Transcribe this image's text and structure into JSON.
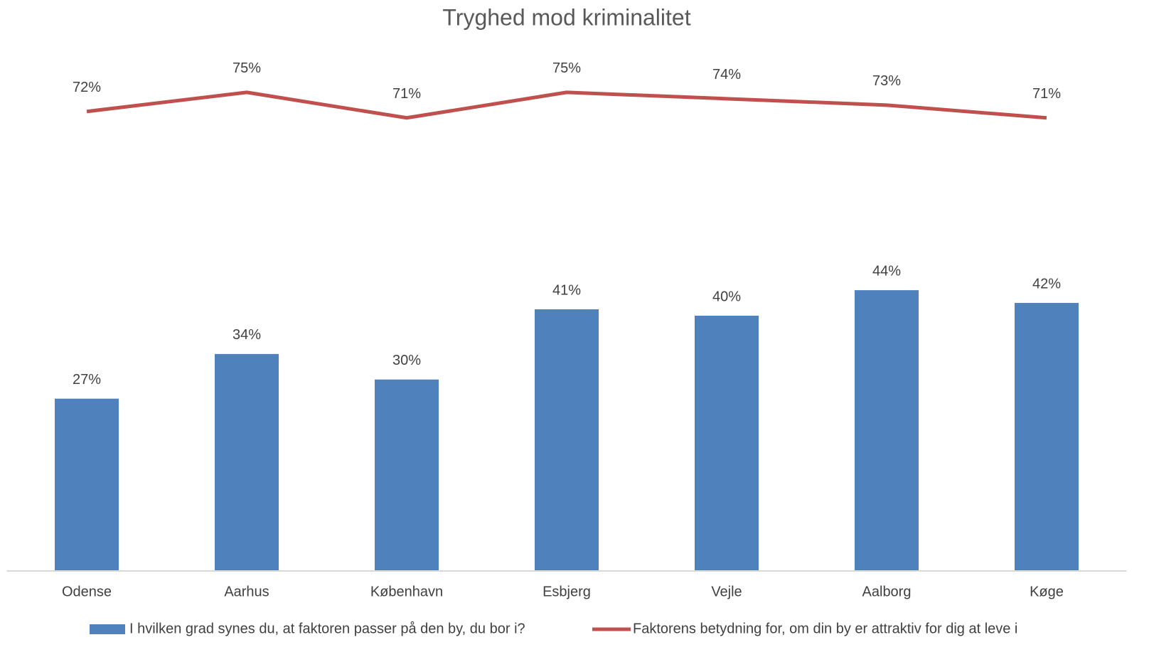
{
  "chart_data": {
    "type": "bar-line",
    "title": "Tryghed mod kriminalitet",
    "categories": [
      "Odense",
      "Aarhus",
      "København",
      "Esbjerg",
      "Vejle",
      "Aalborg",
      "Køge"
    ],
    "series": [
      {
        "name": "I hvilken grad synes du, at faktoren passer på den by, du bor i?",
        "type": "bar",
        "color": "#4f81bd",
        "values": [
          27,
          34,
          30,
          41,
          40,
          44,
          42
        ],
        "value_labels": [
          "27%",
          "34%",
          "30%",
          "41%",
          "40%",
          "44%",
          "42%"
        ]
      },
      {
        "name": "Faktorens betydning for, om din by er attraktiv for dig at leve i",
        "type": "line",
        "color": "#c0504d",
        "values": [
          72,
          75,
          71,
          75,
          74,
          73,
          71
        ],
        "value_labels": [
          "72%",
          "75%",
          "71%",
          "75%",
          "74%",
          "73%",
          "71%"
        ]
      }
    ],
    "ylim": [
      0,
      80
    ],
    "legend": "bottom"
  }
}
